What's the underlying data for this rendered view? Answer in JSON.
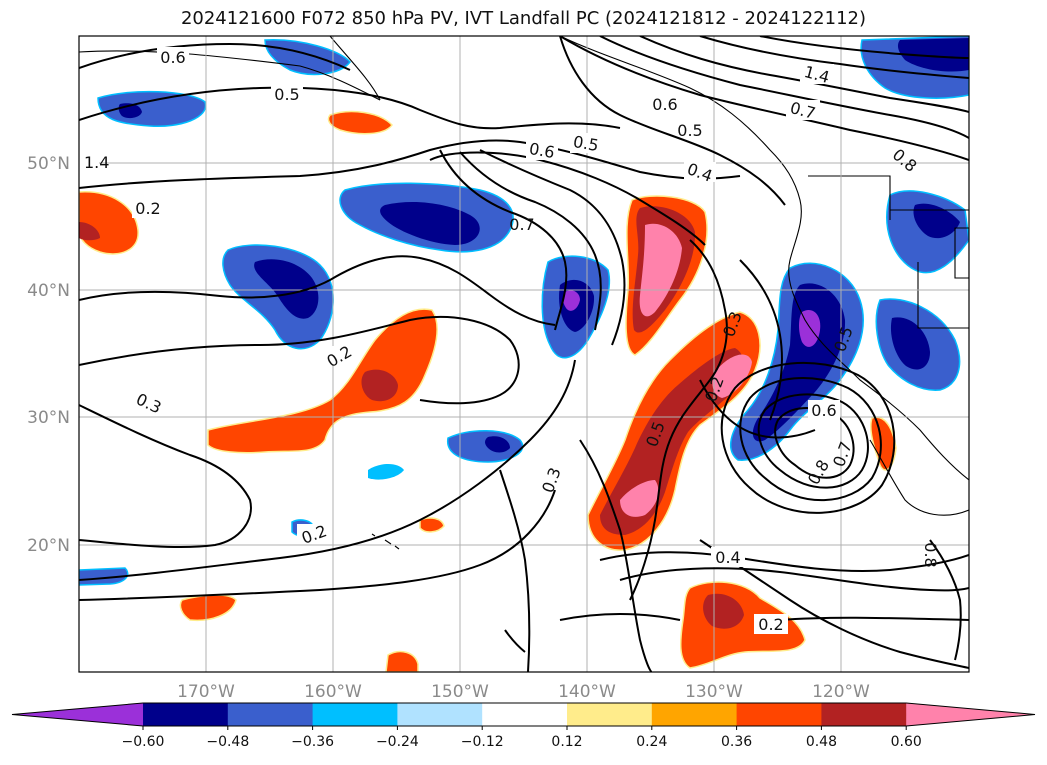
{
  "title": "2024121600 F072 850 hPa PV, IVT Landfall PC (2024121812 - 2024122112)",
  "lon_labels": [
    "170°W",
    "160°W",
    "150°W",
    "140°W",
    "130°W",
    "120°W"
  ],
  "lat_labels": [
    "50°N",
    "40°N",
    "30°N",
    "20°N"
  ],
  "colorbar": {
    "colors": [
      "#9b30d9",
      "#00008b",
      "#3a5fcd",
      "#00bfff",
      "#b0e2ff",
      "#ffffff",
      "#ffec8b",
      "#ffa500",
      "#ff4500",
      "#b22222",
      "#ff82ab"
    ],
    "tick_labels": [
      "−0.60",
      "−0.48",
      "−0.36",
      "−0.24",
      "−0.12",
      "0.12",
      "0.24",
      "0.36",
      "0.48",
      "0.60"
    ]
  },
  "contour_labels": [
    "0.6",
    "0.5",
    "1.4",
    "0.2",
    "0.5",
    "0.6",
    "0.7",
    "0.4",
    "0.2",
    "0.3",
    "0.3",
    "0.5",
    "0.3",
    "0.2",
    "0.5",
    "0.6",
    "0.7",
    "0.8",
    "0.4",
    "0.2",
    "0.2",
    "1.4",
    "0.7",
    "0.8",
    "0.6",
    "0.5",
    "0.8"
  ]
}
